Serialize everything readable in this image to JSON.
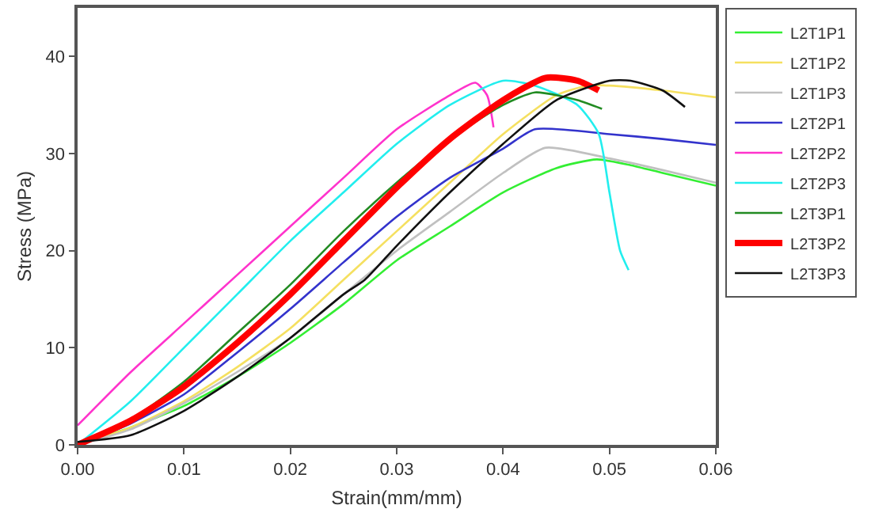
{
  "chart_data": {
    "type": "line",
    "xlabel": "Strain(mm/mm)",
    "ylabel": "Stress (MPa)",
    "xlim": [
      0,
      0.06
    ],
    "ylim": [
      0,
      45
    ],
    "xticks": [
      {
        "value": 0,
        "label": "0.00"
      },
      {
        "value": 0.01,
        "label": "0.01"
      },
      {
        "value": 0.02,
        "label": "0.02"
      },
      {
        "value": 0.03,
        "label": "0.03"
      },
      {
        "value": 0.04,
        "label": "0.04"
      },
      {
        "value": 0.05,
        "label": "0.05"
      },
      {
        "value": 0.06,
        "label": "0.06"
      }
    ],
    "yticks": [
      0,
      10,
      20,
      30,
      40
    ],
    "grid": false,
    "legend": "right",
    "marker": "none",
    "line_style": "solid",
    "series": [
      {
        "name": "L2T1P1",
        "color": "#33ee33",
        "x": [
          0,
          0.005,
          0.01,
          0.015,
          0.02,
          0.025,
          0.03,
          0.035,
          0.04,
          0.045,
          0.0488,
          0.052,
          0.055,
          0.06
        ],
        "values": [
          0,
          1.8,
          4,
          7,
          10.5,
          14.5,
          19,
          22.5,
          26,
          28.5,
          29.4,
          28.8,
          28,
          26.7
        ]
      },
      {
        "name": "L2T1P2",
        "color": "#f5e060",
        "x": [
          0,
          0.005,
          0.01,
          0.015,
          0.02,
          0.025,
          0.03,
          0.035,
          0.04,
          0.045,
          0.048,
          0.05,
          0.055,
          0.06
        ],
        "values": [
          0,
          1.8,
          4.5,
          8,
          12,
          17,
          22,
          27,
          32,
          36,
          37,
          37,
          36.5,
          35.8
        ]
      },
      {
        "name": "L2T1P3",
        "color": "#c0c0c0",
        "x": [
          0,
          0.005,
          0.01,
          0.015,
          0.02,
          0.025,
          0.03,
          0.035,
          0.04,
          0.044,
          0.05,
          0.055,
          0.06
        ],
        "values": [
          0,
          1.6,
          4.3,
          7.5,
          11,
          15.5,
          20,
          24,
          28,
          30.6,
          29.5,
          28.3,
          27
        ]
      },
      {
        "name": "L2T2P1",
        "color": "#3333cc",
        "x": [
          0,
          0.005,
          0.01,
          0.015,
          0.02,
          0.025,
          0.03,
          0.035,
          0.04,
          0.043,
          0.05,
          0.055,
          0.06
        ],
        "values": [
          0,
          2.2,
          5.2,
          9.5,
          14,
          18.8,
          23.5,
          27.5,
          30.5,
          32.5,
          32,
          31.5,
          30.9
        ]
      },
      {
        "name": "L2T2P2",
        "color": "#ff33cc",
        "x": [
          0,
          0.005,
          0.01,
          0.015,
          0.02,
          0.025,
          0.03,
          0.035,
          0.0374,
          0.0385,
          0.0391
        ],
        "values": [
          2,
          7.5,
          12.5,
          17.5,
          22.5,
          27.5,
          32.5,
          36,
          37.3,
          36,
          32.7
        ]
      },
      {
        "name": "L2T2P3",
        "color": "#22eeee",
        "x": [
          0,
          0.005,
          0.01,
          0.015,
          0.02,
          0.025,
          0.03,
          0.035,
          0.04,
          0.043,
          0.047,
          0.049,
          0.05,
          0.051,
          0.0518
        ],
        "values": [
          0,
          4.5,
          10,
          15.5,
          21,
          26,
          31,
          35,
          37.5,
          37,
          35,
          32,
          26,
          20,
          18
        ]
      },
      {
        "name": "L2T3P1",
        "color": "#228b22",
        "x": [
          0,
          0.005,
          0.01,
          0.015,
          0.02,
          0.025,
          0.03,
          0.035,
          0.04,
          0.043,
          0.047,
          0.0493
        ],
        "values": [
          0,
          2.6,
          6.5,
          11.5,
          16.5,
          22,
          27,
          31.5,
          35,
          36.3,
          35.5,
          34.6
        ]
      },
      {
        "name": "L2T3P2",
        "color": "#ff0000",
        "x": [
          0,
          0.005,
          0.01,
          0.015,
          0.02,
          0.025,
          0.03,
          0.035,
          0.04,
          0.044,
          0.047,
          0.049
        ],
        "values": [
          0,
          2.5,
          6,
          10.5,
          15.5,
          21,
          26.5,
          31.5,
          35.5,
          37.8,
          37.5,
          36.5
        ]
      },
      {
        "name": "L2T3P3",
        "color": "#111111",
        "x": [
          0,
          0.005,
          0.01,
          0.015,
          0.02,
          0.025,
          0.027,
          0.03,
          0.035,
          0.04,
          0.045,
          0.05,
          0.052,
          0.055,
          0.0571
        ],
        "values": [
          0.3,
          1,
          3.5,
          7,
          11,
          15.5,
          17,
          20.5,
          26,
          31,
          35.5,
          37.5,
          37.5,
          36.5,
          34.8
        ]
      }
    ]
  }
}
